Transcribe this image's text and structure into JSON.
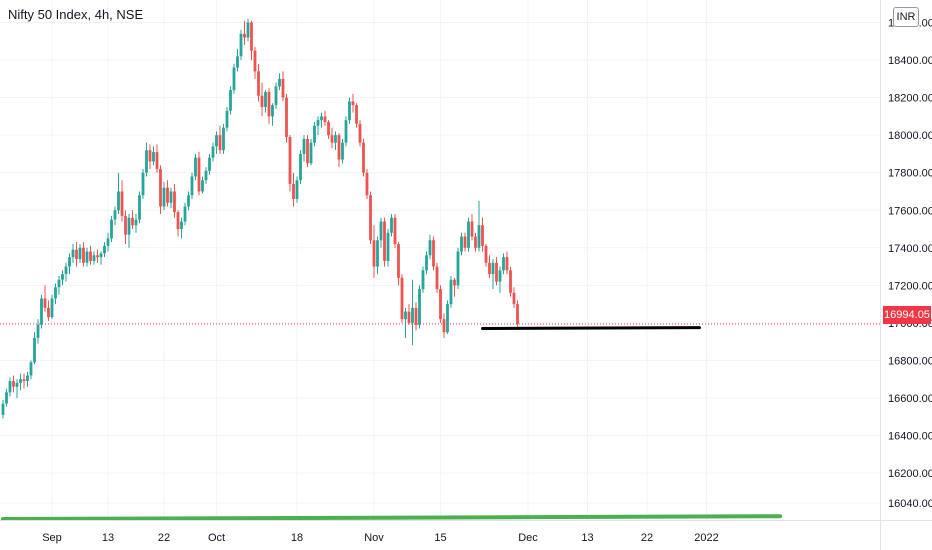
{
  "header": {
    "title": "Nifty 50 Index, 4h, NSE",
    "currency": "INR"
  },
  "colors": {
    "up": "#26a69a",
    "down": "#ef5350",
    "support": "#000000",
    "base": "#4caf50",
    "last_price": "#f23645"
  },
  "chart_data": {
    "type": "candlestick",
    "instrument": "Nifty 50 Index",
    "interval": "4h",
    "exchange": "NSE",
    "currency": "INR",
    "y_axis": {
      "ylim": [
        15950,
        18720
      ],
      "ticks": [
        "16040.00",
        "16200.00",
        "16400.00",
        "16600.00",
        "16800.00",
        "17000.00",
        "17200.00",
        "17400.00",
        "17600.00",
        "17800.00",
        "18000.00",
        "18200.00",
        "18400.00",
        "18600.00"
      ]
    },
    "x_axis": {
      "ticks": [
        {
          "label": "Sep",
          "i": 14
        },
        {
          "label": "13",
          "i": 30
        },
        {
          "label": "22",
          "i": 46
        },
        {
          "label": "Oct",
          "i": 61
        },
        {
          "label": "18",
          "i": 84
        },
        {
          "label": "Nov",
          "i": 106
        },
        {
          "label": "15",
          "i": 125
        },
        {
          "label": "Dec",
          "i": 150
        },
        {
          "label": "13",
          "i": 167
        },
        {
          "label": "22",
          "i": 184
        },
        {
          "label": "2022",
          "i": 201
        }
      ]
    },
    "last_price": "16994.05",
    "lines": [
      {
        "name": "support",
        "from": {
          "i": 137,
          "y": 16970
        },
        "to": {
          "i": 199,
          "y": 16975
        }
      },
      {
        "name": "base",
        "from": {
          "i": 0,
          "y": 15955
        },
        "to": {
          "i": 222,
          "y": 15970
        }
      }
    ],
    "ohlc": [
      [
        16510,
        16590,
        16490,
        16570
      ],
      [
        16570,
        16650,
        16555,
        16630
      ],
      [
        16630,
        16710,
        16610,
        16690
      ],
      [
        16690,
        16720,
        16630,
        16660
      ],
      [
        16660,
        16700,
        16600,
        16680
      ],
      [
        16680,
        16730,
        16640,
        16700
      ],
      [
        16700,
        16730,
        16650,
        16690
      ],
      [
        16690,
        16740,
        16660,
        16720
      ],
      [
        16720,
        16800,
        16700,
        16790
      ],
      [
        16790,
        16950,
        16780,
        16920
      ],
      [
        16920,
        17020,
        16890,
        16990
      ],
      [
        16990,
        17150,
        16970,
        17130
      ],
      [
        17130,
        17200,
        17060,
        17080
      ],
      [
        17080,
        17120,
        17010,
        17030
      ],
      [
        17030,
        17150,
        17020,
        17130
      ],
      [
        17130,
        17210,
        17100,
        17190
      ],
      [
        17190,
        17250,
        17150,
        17230
      ],
      [
        17230,
        17280,
        17200,
        17260
      ],
      [
        17260,
        17320,
        17220,
        17300
      ],
      [
        17300,
        17370,
        17260,
        17350
      ],
      [
        17350,
        17420,
        17320,
        17390
      ],
      [
        17390,
        17430,
        17300,
        17340
      ],
      [
        17340,
        17420,
        17320,
        17400
      ],
      [
        17400,
        17430,
        17300,
        17320
      ],
      [
        17320,
        17400,
        17300,
        17380
      ],
      [
        17380,
        17410,
        17310,
        17330
      ],
      [
        17330,
        17380,
        17310,
        17360
      ],
      [
        17360,
        17390,
        17320,
        17350
      ],
      [
        17350,
        17380,
        17310,
        17370
      ],
      [
        17370,
        17430,
        17350,
        17410
      ],
      [
        17410,
        17480,
        17380,
        17450
      ],
      [
        17450,
        17570,
        17430,
        17550
      ],
      [
        17550,
        17620,
        17520,
        17600
      ],
      [
        17600,
        17800,
        17580,
        17700
      ],
      [
        17700,
        17760,
        17540,
        17570
      ],
      [
        17570,
        17600,
        17420,
        17470
      ],
      [
        17470,
        17580,
        17400,
        17560
      ],
      [
        17560,
        17600,
        17500,
        17520
      ],
      [
        17520,
        17580,
        17480,
        17550
      ],
      [
        17550,
        17700,
        17530,
        17680
      ],
      [
        17680,
        17820,
        17660,
        17800
      ],
      [
        17800,
        17960,
        17780,
        17920
      ],
      [
        17920,
        17950,
        17820,
        17860
      ],
      [
        17860,
        17940,
        17840,
        17910
      ],
      [
        17910,
        17950,
        17800,
        17820
      ],
      [
        17820,
        17840,
        17580,
        17620
      ],
      [
        17620,
        17750,
        17600,
        17720
      ],
      [
        17720,
        17760,
        17620,
        17640
      ],
      [
        17640,
        17720,
        17610,
        17700
      ],
      [
        17700,
        17740,
        17560,
        17590
      ],
      [
        17590,
        17600,
        17460,
        17500
      ],
      [
        17500,
        17560,
        17450,
        17540
      ],
      [
        17540,
        17640,
        17520,
        17620
      ],
      [
        17620,
        17700,
        17600,
        17680
      ],
      [
        17680,
        17800,
        17660,
        17780
      ],
      [
        17780,
        17900,
        17760,
        17880
      ],
      [
        17880,
        17910,
        17680,
        17700
      ],
      [
        17700,
        17780,
        17690,
        17760
      ],
      [
        17760,
        17830,
        17740,
        17810
      ],
      [
        17810,
        17900,
        17790,
        17880
      ],
      [
        17880,
        17960,
        17860,
        17940
      ],
      [
        17940,
        18020,
        17900,
        18000
      ],
      [
        18000,
        18050,
        17900,
        17920
      ],
      [
        17920,
        18060,
        17900,
        18040
      ],
      [
        18040,
        18150,
        18020,
        18130
      ],
      [
        18130,
        18260,
        18110,
        18240
      ],
      [
        18240,
        18380,
        18220,
        18360
      ],
      [
        18360,
        18460,
        18340,
        18420
      ],
      [
        18420,
        18560,
        18400,
        18540
      ],
      [
        18540,
        18610,
        18480,
        18520
      ],
      [
        18520,
        18620,
        18500,
        18600
      ],
      [
        18600,
        18610,
        18400,
        18450
      ],
      [
        18450,
        18470,
        18300,
        18340
      ],
      [
        18340,
        18380,
        18180,
        18210
      ],
      [
        18210,
        18280,
        18100,
        18150
      ],
      [
        18150,
        18240,
        18120,
        18230
      ],
      [
        18230,
        18250,
        18060,
        18100
      ],
      [
        18100,
        18170,
        18050,
        18160
      ],
      [
        18160,
        18280,
        18140,
        18260
      ],
      [
        18260,
        18330,
        18240,
        18300
      ],
      [
        18300,
        18340,
        18180,
        18200
      ],
      [
        18200,
        18220,
        17960,
        17990
      ],
      [
        17990,
        18000,
        17700,
        17740
      ],
      [
        17740,
        17800,
        17620,
        17660
      ],
      [
        17660,
        17780,
        17640,
        17760
      ],
      [
        17760,
        17920,
        17740,
        17900
      ],
      [
        17900,
        18000,
        17860,
        17980
      ],
      [
        17980,
        18000,
        17830,
        17850
      ],
      [
        17850,
        17980,
        17840,
        17960
      ],
      [
        17960,
        18070,
        17940,
        18050
      ],
      [
        18050,
        18100,
        18000,
        18080
      ],
      [
        18080,
        18120,
        18040,
        18100
      ],
      [
        18100,
        18130,
        18050,
        18070
      ],
      [
        18070,
        18080,
        17980,
        18000
      ],
      [
        18000,
        18040,
        17930,
        17960
      ],
      [
        17960,
        18020,
        17920,
        18000
      ],
      [
        18000,
        18010,
        17830,
        17870
      ],
      [
        17870,
        17980,
        17850,
        17960
      ],
      [
        17960,
        18100,
        17940,
        18080
      ],
      [
        18080,
        18200,
        18060,
        18180
      ],
      [
        18180,
        18220,
        18120,
        18160
      ],
      [
        18160,
        18170,
        18040,
        18060
      ],
      [
        18060,
        18080,
        17940,
        17960
      ],
      [
        17960,
        17980,
        17780,
        17800
      ],
      [
        17800,
        17820,
        17660,
        17680
      ],
      [
        17680,
        17700,
        17420,
        17440
      ],
      [
        17440,
        17520,
        17240,
        17300
      ],
      [
        17300,
        17460,
        17260,
        17440
      ],
      [
        17440,
        17560,
        17400,
        17540
      ],
      [
        17540,
        17560,
        17300,
        17330
      ],
      [
        17330,
        17500,
        17300,
        17480
      ],
      [
        17480,
        17580,
        17460,
        17560
      ],
      [
        17560,
        17580,
        17400,
        17420
      ],
      [
        17420,
        17430,
        17200,
        17240
      ],
      [
        17240,
        17260,
        17000,
        17020
      ],
      [
        17020,
        17080,
        16920,
        17060
      ],
      [
        17060,
        17100,
        16990,
        17000
      ],
      [
        17000,
        17230,
        16880,
        17080
      ],
      [
        17080,
        17110,
        16960,
        16990
      ],
      [
        16990,
        17200,
        16970,
        17180
      ],
      [
        17180,
        17300,
        17160,
        17280
      ],
      [
        17280,
        17380,
        17260,
        17360
      ],
      [
        17360,
        17470,
        17340,
        17440
      ],
      [
        17440,
        17460,
        17280,
        17300
      ],
      [
        17300,
        17320,
        17160,
        17180
      ],
      [
        17180,
        17200,
        17000,
        17020
      ],
      [
        17020,
        17050,
        16920,
        16950
      ],
      [
        16950,
        17120,
        16940,
        17100
      ],
      [
        17100,
        17250,
        17080,
        17230
      ],
      [
        17230,
        17240,
        17140,
        17200
      ],
      [
        17200,
        17400,
        17180,
        17380
      ],
      [
        17380,
        17480,
        17360,
        17460
      ],
      [
        17460,
        17480,
        17380,
        17400
      ],
      [
        17400,
        17560,
        17380,
        17540
      ],
      [
        17540,
        17580,
        17440,
        17460
      ],
      [
        17460,
        17480,
        17380,
        17400
      ],
      [
        17400,
        17650,
        17380,
        17520
      ],
      [
        17520,
        17560,
        17380,
        17410
      ],
      [
        17410,
        17420,
        17300,
        17320
      ],
      [
        17320,
        17360,
        17240,
        17260
      ],
      [
        17260,
        17340,
        17180,
        17320
      ],
      [
        17320,
        17350,
        17200,
        17220
      ],
      [
        17220,
        17300,
        17160,
        17280
      ],
      [
        17280,
        17370,
        17260,
        17350
      ],
      [
        17350,
        17380,
        17260,
        17280
      ],
      [
        17280,
        17300,
        17140,
        17160
      ],
      [
        17160,
        17190,
        17080,
        17100
      ],
      [
        17100,
        17120,
        16980,
        16994
      ]
    ]
  }
}
